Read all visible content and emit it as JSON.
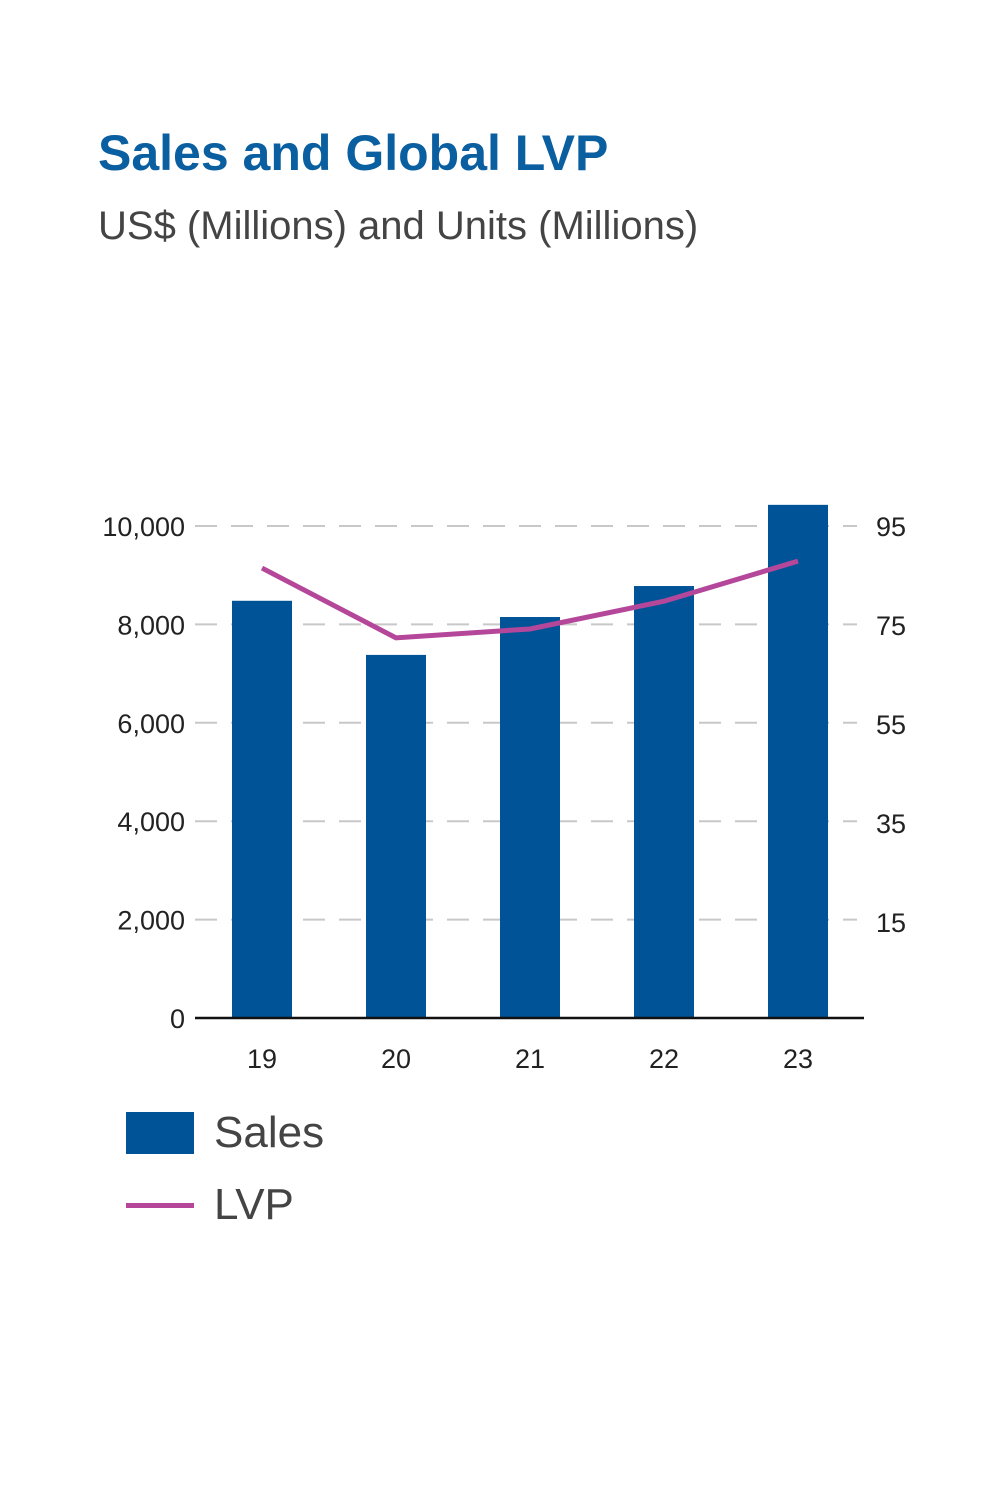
{
  "chart_data": {
    "type": "bar+line",
    "title": "Sales and Global LVP",
    "subtitle": "US$ (Millions) and Units (Millions)",
    "categories": [
      "19",
      "20",
      "21",
      "22",
      "23"
    ],
    "series": [
      {
        "name": "Sales",
        "type": "bar",
        "axis": "left",
        "color": "#005396",
        "values": [
          8480,
          7380,
          8150,
          8780,
          10430
        ]
      },
      {
        "name": "LVP",
        "type": "line",
        "axis": "right",
        "color": "#b5479a",
        "values": [
          86.5,
          72.4,
          74.2,
          79.8,
          87.9
        ]
      }
    ],
    "left_axis": {
      "ylim": [
        0,
        10000
      ],
      "ticks": [
        0,
        2000,
        4000,
        6000,
        8000,
        10000
      ],
      "tick_labels": [
        "0",
        "2,000",
        "4,000",
        "6,000",
        "8,000",
        "10,000"
      ]
    },
    "right_axis": {
      "ylim": [
        -4.3,
        95
      ],
      "ticks": [
        15,
        35,
        55,
        75,
        95
      ],
      "tick_labels": [
        "15",
        "35",
        "55",
        "75",
        "95"
      ]
    },
    "grid": "dashed horizontal",
    "legend_position": "bottom-left"
  }
}
